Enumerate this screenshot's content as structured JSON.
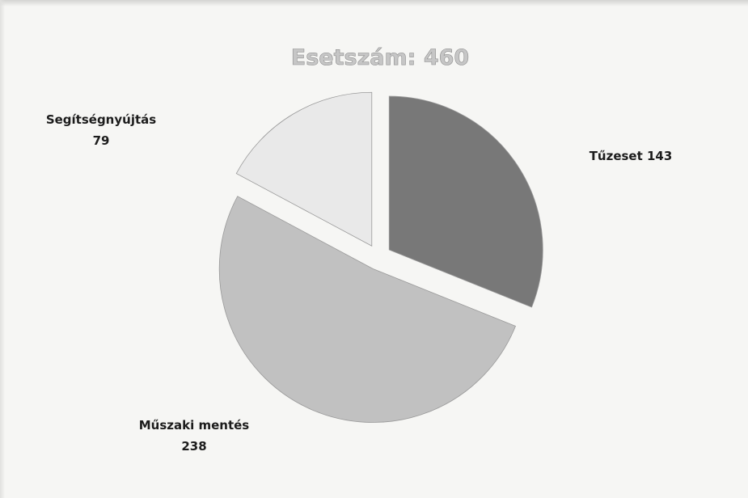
{
  "chart_data": {
    "type": "pie",
    "title": "Esetszám: 460",
    "categories": [
      "Tűzeset",
      "Műszaki mentés",
      "Segítségnyújtás"
    ],
    "values": [
      143,
      238,
      79
    ],
    "slice_colors": [
      "#787878",
      "#c1c1c1",
      "#e9e9e9"
    ],
    "exploded": true,
    "legend": "none",
    "labels": [
      {
        "name": "Tűzeset",
        "value": "143",
        "text": "Tűzeset 143"
      },
      {
        "name": "Műszaki mentés",
        "value": "238"
      },
      {
        "name": "Segítségnyújtás",
        "value": "79"
      }
    ]
  }
}
